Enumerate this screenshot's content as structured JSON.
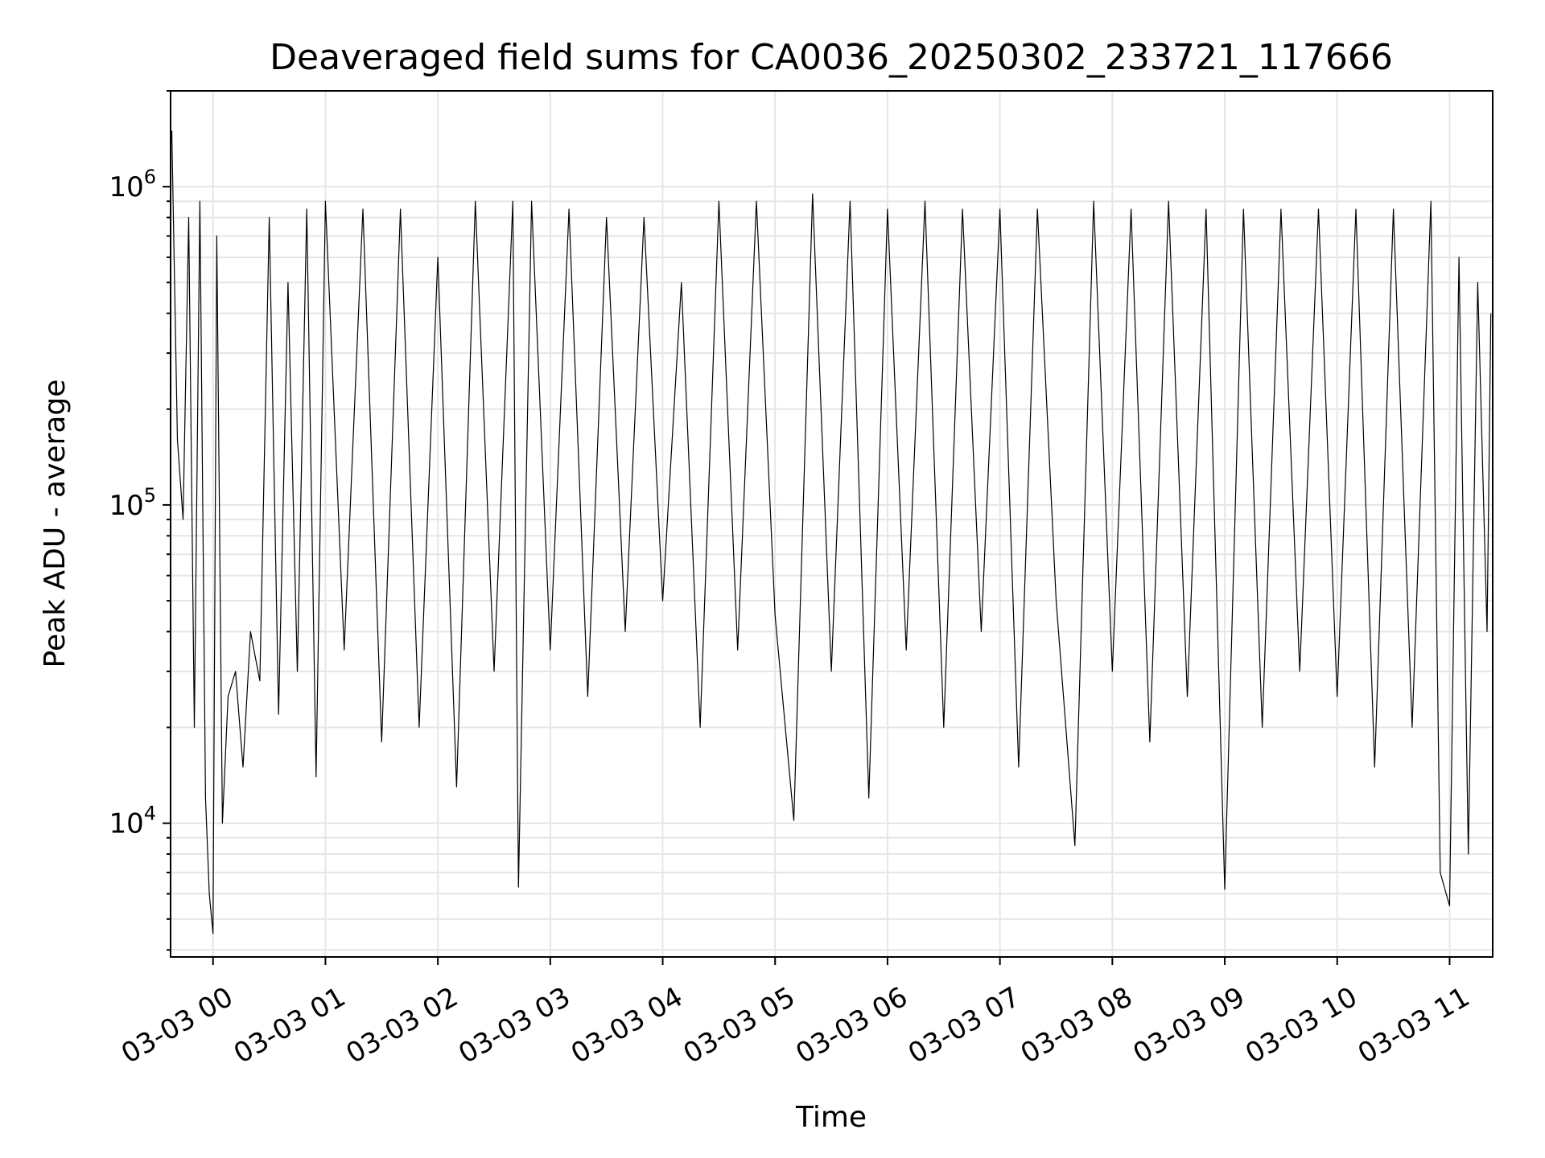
{
  "chart_data": {
    "type": "line",
    "title": "Deaveraged field sums for CA0036_20250302_233721_117666",
    "xlabel": "Time",
    "ylabel": "Peak ADU - average",
    "y_scale": "log",
    "ylim": [
      3800,
      2000000
    ],
    "xlim": [
      "2025-03-02 23:37:21",
      "2025-03-03 11:23:00"
    ],
    "grid": true,
    "x_ticks": [
      {
        "label": "03-03 00",
        "t": "2025-03-03 00:00"
      },
      {
        "label": "03-03 01",
        "t": "2025-03-03 01:00"
      },
      {
        "label": "03-03 02",
        "t": "2025-03-03 02:00"
      },
      {
        "label": "03-03 03",
        "t": "2025-03-03 03:00"
      },
      {
        "label": "03-03 04",
        "t": "2025-03-03 04:00"
      },
      {
        "label": "03-03 05",
        "t": "2025-03-03 05:00"
      },
      {
        "label": "03-03 06",
        "t": "2025-03-03 06:00"
      },
      {
        "label": "03-03 07",
        "t": "2025-03-03 07:00"
      },
      {
        "label": "03-03 08",
        "t": "2025-03-03 08:00"
      },
      {
        "label": "03-03 09",
        "t": "2025-03-03 09:00"
      },
      {
        "label": "03-03 10",
        "t": "2025-03-03 10:00"
      },
      {
        "label": "03-03 11",
        "t": "2025-03-03 11:00"
      }
    ],
    "y_ticks": [
      {
        "base": "10",
        "exp": "4",
        "value": 10000
      },
      {
        "base": "10",
        "exp": "5",
        "value": 100000
      },
      {
        "base": "10",
        "exp": "6",
        "value": 1000000
      }
    ],
    "series": [
      {
        "color": "#000000",
        "points": [
          [
            "2025-03-02 23:38",
            1500000
          ],
          [
            "2025-03-02 23:41",
            160000
          ],
          [
            "2025-03-02 23:44",
            90000
          ],
          [
            "2025-03-02 23:47",
            800000
          ],
          [
            "2025-03-02 23:50",
            20000
          ],
          [
            "2025-03-02 23:53",
            900000
          ],
          [
            "2025-03-02 23:56",
            12000
          ],
          [
            "2025-03-02 23:58",
            6000
          ],
          [
            "2025-03-03 00:00",
            4500
          ],
          [
            "2025-03-03 00:02",
            700000
          ],
          [
            "2025-03-03 00:05",
            10000
          ],
          [
            "2025-03-03 00:08",
            25000
          ],
          [
            "2025-03-03 00:12",
            30000
          ],
          [
            "2025-03-03 00:16",
            15000
          ],
          [
            "2025-03-03 00:20",
            40000
          ],
          [
            "2025-03-03 00:25",
            28000
          ],
          [
            "2025-03-03 00:30",
            800000
          ],
          [
            "2025-03-03 00:35",
            22000
          ],
          [
            "2025-03-03 00:40",
            500000
          ],
          [
            "2025-03-03 00:45",
            30000
          ],
          [
            "2025-03-03 00:50",
            850000
          ],
          [
            "2025-03-03 00:55",
            14000
          ],
          [
            "2025-03-03 01:00",
            900000
          ],
          [
            "2025-03-03 01:10",
            35000
          ],
          [
            "2025-03-03 01:20",
            850000
          ],
          [
            "2025-03-03 01:30",
            18000
          ],
          [
            "2025-03-03 01:40",
            850000
          ],
          [
            "2025-03-03 01:50",
            20000
          ],
          [
            "2025-03-03 02:00",
            600000
          ],
          [
            "2025-03-03 02:10",
            13000
          ],
          [
            "2025-03-03 02:20",
            900000
          ],
          [
            "2025-03-03 02:30",
            30000
          ],
          [
            "2025-03-03 02:40",
            900000
          ],
          [
            "2025-03-03 02:43",
            6300
          ],
          [
            "2025-03-03 02:50",
            900000
          ],
          [
            "2025-03-03 03:00",
            35000
          ],
          [
            "2025-03-03 03:10",
            850000
          ],
          [
            "2025-03-03 03:20",
            25000
          ],
          [
            "2025-03-03 03:30",
            800000
          ],
          [
            "2025-03-03 03:40",
            40000
          ],
          [
            "2025-03-03 03:50",
            800000
          ],
          [
            "2025-03-03 04:00",
            50000
          ],
          [
            "2025-03-03 04:10",
            500000
          ],
          [
            "2025-03-03 04:20",
            20000
          ],
          [
            "2025-03-03 04:30",
            900000
          ],
          [
            "2025-03-03 04:40",
            35000
          ],
          [
            "2025-03-03 04:50",
            900000
          ],
          [
            "2025-03-03 05:00",
            45000
          ],
          [
            "2025-03-03 05:10",
            10200
          ],
          [
            "2025-03-03 05:20",
            950000
          ],
          [
            "2025-03-03 05:30",
            30000
          ],
          [
            "2025-03-03 05:40",
            900000
          ],
          [
            "2025-03-03 05:50",
            12000
          ],
          [
            "2025-03-03 06:00",
            850000
          ],
          [
            "2025-03-03 06:10",
            35000
          ],
          [
            "2025-03-03 06:20",
            900000
          ],
          [
            "2025-03-03 06:30",
            20000
          ],
          [
            "2025-03-03 06:40",
            850000
          ],
          [
            "2025-03-03 06:50",
            40000
          ],
          [
            "2025-03-03 07:00",
            850000
          ],
          [
            "2025-03-03 07:10",
            15000
          ],
          [
            "2025-03-03 07:20",
            850000
          ],
          [
            "2025-03-03 07:30",
            50000
          ],
          [
            "2025-03-03 07:40",
            8500
          ],
          [
            "2025-03-03 07:50",
            900000
          ],
          [
            "2025-03-03 08:00",
            30000
          ],
          [
            "2025-03-03 08:10",
            850000
          ],
          [
            "2025-03-03 08:20",
            18000
          ],
          [
            "2025-03-03 08:30",
            900000
          ],
          [
            "2025-03-03 08:40",
            25000
          ],
          [
            "2025-03-03 08:50",
            850000
          ],
          [
            "2025-03-03 09:00",
            6200
          ],
          [
            "2025-03-03 09:10",
            850000
          ],
          [
            "2025-03-03 09:20",
            20000
          ],
          [
            "2025-03-03 09:30",
            850000
          ],
          [
            "2025-03-03 09:40",
            30000
          ],
          [
            "2025-03-03 09:50",
            850000
          ],
          [
            "2025-03-03 10:00",
            25000
          ],
          [
            "2025-03-03 10:10",
            850000
          ],
          [
            "2025-03-03 10:20",
            15000
          ],
          [
            "2025-03-03 10:30",
            850000
          ],
          [
            "2025-03-03 10:40",
            20000
          ],
          [
            "2025-03-03 10:50",
            900000
          ],
          [
            "2025-03-03 10:55",
            7000
          ],
          [
            "2025-03-03 11:00",
            5500
          ],
          [
            "2025-03-03 11:05",
            600000
          ],
          [
            "2025-03-03 11:10",
            8000
          ],
          [
            "2025-03-03 11:15",
            500000
          ],
          [
            "2025-03-03 11:20",
            40000
          ],
          [
            "2025-03-03 11:22",
            400000
          ]
        ]
      }
    ]
  }
}
